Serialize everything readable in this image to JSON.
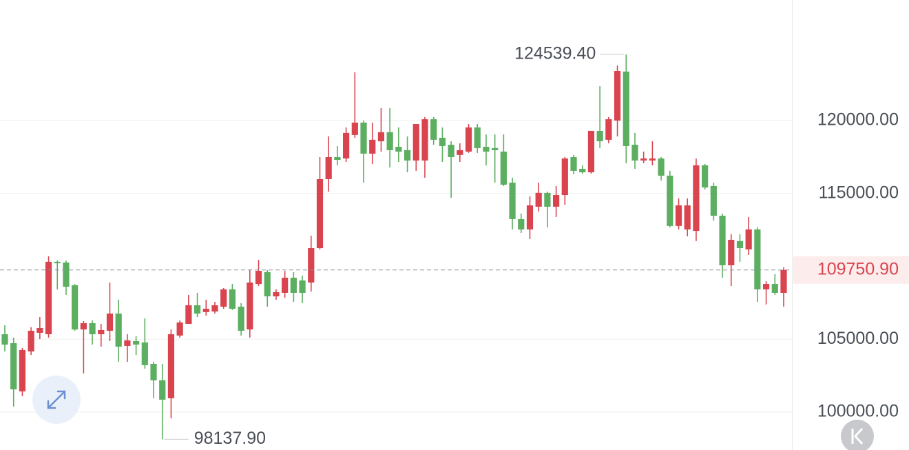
{
  "chart_data": {
    "type": "candlestick",
    "up_color": "#d9444f",
    "down_color": "#5cae60",
    "ylim": [
      97400,
      128270
    ],
    "yticks": [
      {
        "value": 100000,
        "label": "100000.00"
      },
      {
        "value": 105000,
        "label": "105000.00"
      },
      {
        "value": 115000,
        "label": "115000.00"
      },
      {
        "value": 120000,
        "label": "120000.00"
      }
    ],
    "grid": true,
    "last_price": {
      "value": 109750.9,
      "label": "109750.90"
    },
    "annotations": [
      {
        "value": 124539.4,
        "label": "124539.40"
      },
      {
        "value": 98137.9,
        "label": "98137.90"
      }
    ],
    "open": [
      105340,
      104730,
      101420,
      104160,
      105440,
      105340,
      110310,
      110260,
      108700,
      105670,
      106100,
      105340,
      105580,
      106760,
      104540,
      104870,
      104780,
      103310,
      102180,
      100950,
      105250,
      106050,
      107330,
      106860,
      106900,
      107230,
      108420,
      107230,
      105670,
      108790,
      109600,
      107940,
      108180,
      109220,
      109030,
      108890,
      111250,
      115980,
      117490,
      117400,
      119010,
      119860,
      117730,
      118580,
      119200,
      118200,
      117970,
      117260,
      117260,
      120090,
      118820,
      118340,
      117640,
      117870,
      119530,
      118200,
      118110,
      117870,
      115740,
      113240,
      112530,
      114090,
      115040,
      114090,
      114890,
      117490,
      116690,
      116450,
      119290,
      118680,
      120000,
      123360,
      118340,
      117260,
      117260,
      117400,
      116220,
      112770,
      112530,
      112430,
      116930,
      115510,
      113470,
      110070,
      111730,
      111160,
      112530,
      108420,
      108790,
      108180
    ],
    "high": [
      105960,
      105110,
      104400,
      105820,
      106520,
      110690,
      110400,
      110400,
      108790,
      106240,
      106290,
      106050,
      108890,
      107710,
      105340,
      105200,
      106430,
      103450,
      103310,
      105670,
      106290,
      108040,
      108180,
      107710,
      107560,
      108510,
      108790,
      107470,
      109740,
      110450,
      109740,
      108420,
      109690,
      109600,
      109360,
      112100,
      117490,
      118910,
      118250,
      119530,
      123310,
      120000,
      119860,
      120850,
      120850,
      119530,
      118910,
      119760,
      120240,
      120240,
      119530,
      118580,
      118440,
      119760,
      119760,
      119050,
      119050,
      119050,
      116080,
      113620,
      114800,
      115740,
      115130,
      115510,
      117490,
      117640,
      116930,
      119290,
      122360,
      120240,
      123780,
      124539.4,
      119150,
      117870,
      118580,
      117490,
      116550,
      114660,
      114660,
      117400,
      117020,
      115740,
      113620,
      112200,
      112200,
      113380,
      112670,
      108980,
      109460,
      109930
    ],
    "low": [
      104160,
      100380,
      101090,
      103920,
      105010,
      105110,
      108420,
      108040,
      105580,
      102650,
      104630,
      104490,
      104870,
      103450,
      103450,
      103920,
      102980,
      100950,
      98137.9,
      99570,
      105110,
      106050,
      106520,
      106620,
      106760,
      107090,
      107000,
      105250,
      105110,
      108650,
      107230,
      107710,
      107850,
      107560,
      107470,
      108270,
      111160,
      115130,
      116930,
      117160,
      118820,
      115740,
      117020,
      117870,
      116780,
      117160,
      116450,
      116550,
      116080,
      118340,
      117160,
      114700,
      117160,
      117780,
      117780,
      116930,
      115740,
      115510,
      112530,
      112290,
      111870,
      113760,
      112670,
      113380,
      114230,
      116310,
      116360,
      116360,
      118110,
      118440,
      118910,
      117070,
      116690,
      117070,
      116930,
      115890,
      112670,
      112530,
      112060,
      111730,
      115270,
      113140,
      109220,
      108650,
      110310,
      110780,
      107560,
      107380,
      108040,
      107230
    ],
    "close": [
      104630,
      101560,
      104260,
      105580,
      105770,
      110310,
      110210,
      108600,
      105670,
      106100,
      105340,
      105630,
      106760,
      104490,
      104920,
      104630,
      103220,
      102180,
      100850,
      105340,
      106150,
      107330,
      106760,
      107090,
      107330,
      108420,
      107090,
      105580,
      108890,
      109690,
      107940,
      108230,
      109220,
      108180,
      108180,
      111250,
      115980,
      117490,
      117300,
      119150,
      119860,
      117730,
      118680,
      119200,
      117970,
      117870,
      117260,
      119760,
      120090,
      118680,
      118250,
      117490,
      117970,
      119530,
      118110,
      117870,
      117970,
      115600,
      113240,
      112530,
      114180,
      115040,
      114090,
      114890,
      117400,
      116550,
      116450,
      119290,
      118580,
      120090,
      123400,
      118250,
      117260,
      117400,
      117400,
      116220,
      112770,
      114180,
      114180,
      116930,
      115410,
      113470,
      110070,
      111820,
      111250,
      112530,
      108420,
      108790,
      108180,
      109750.9
    ]
  }
}
